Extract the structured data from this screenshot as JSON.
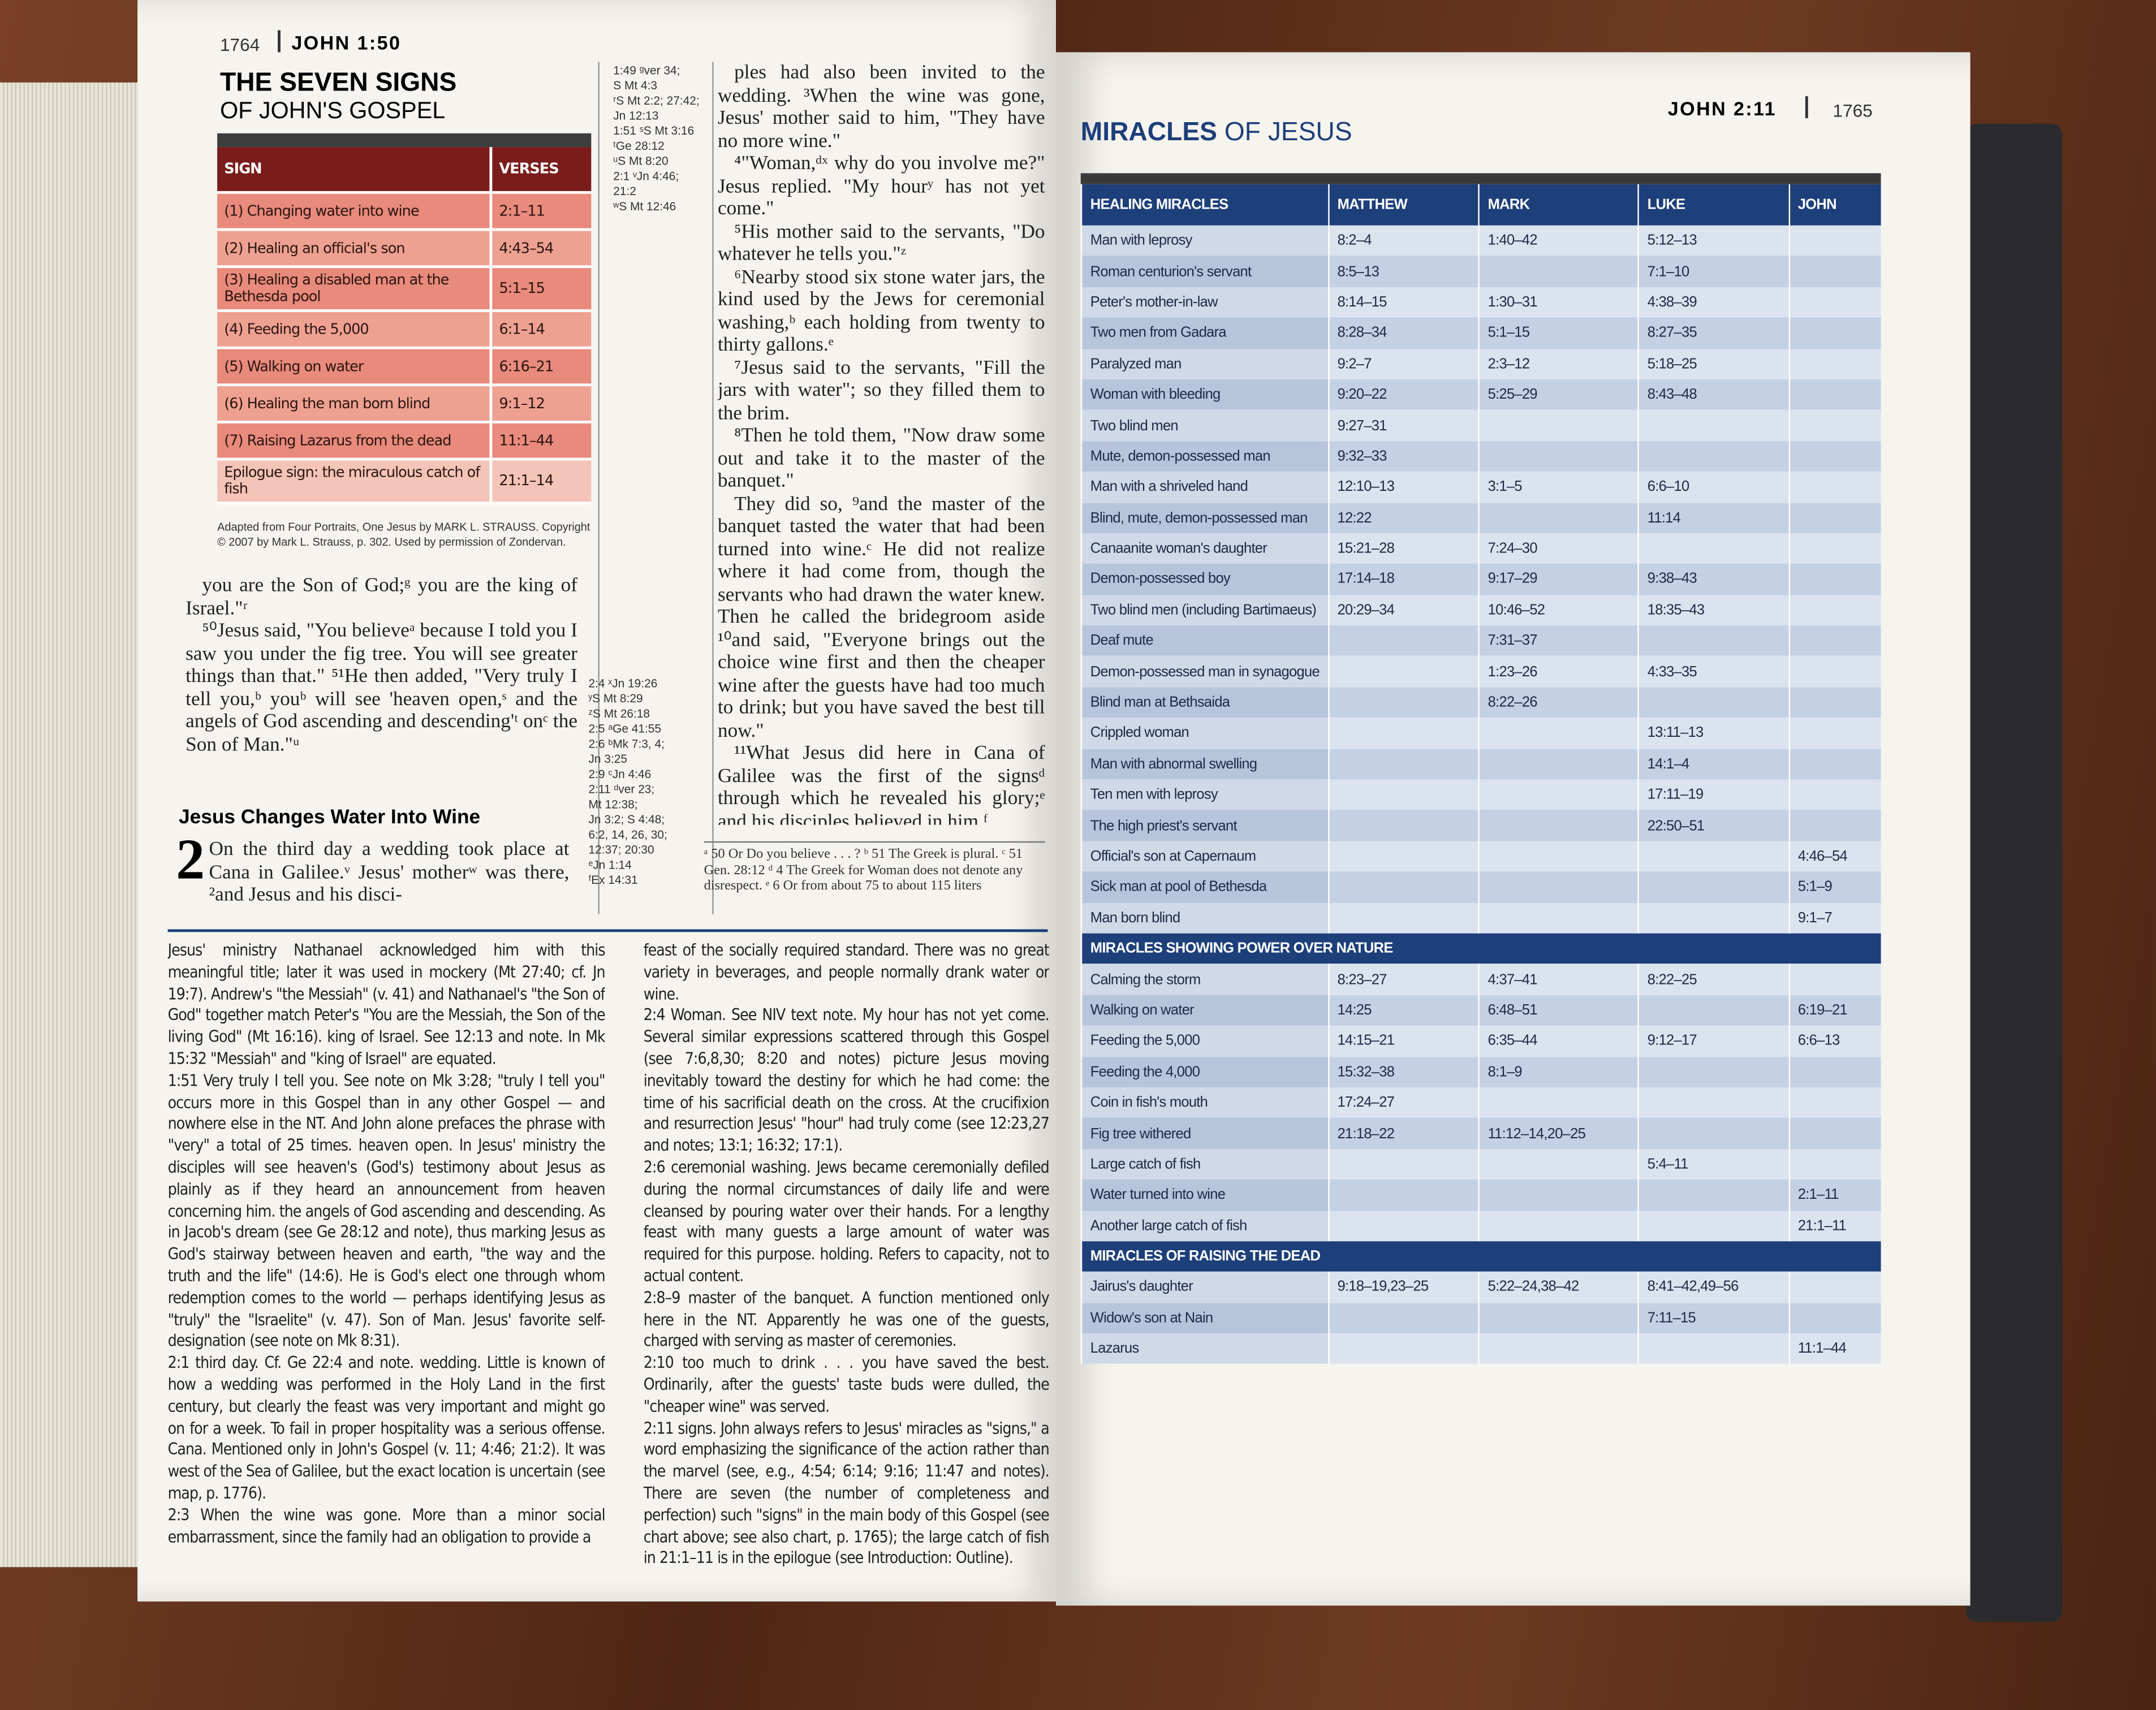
{
  "left_page": {
    "page_number": "1764",
    "running_head": "JOHN 1:50",
    "seven_signs": {
      "title": "THE SEVEN SIGNS",
      "subtitle": "OF JOHN'S GOSPEL",
      "header": [
        "SIGN",
        "VERSES"
      ],
      "rows": [
        [
          "(1) Changing water into wine",
          "2:1–11"
        ],
        [
          "(2) Healing an official's son",
          "4:43–54"
        ],
        [
          "(3) Healing a disabled man at the Bethesda pool",
          "5:1–15"
        ],
        [
          "(4) Feeding the 5,000",
          "6:1–14"
        ],
        [
          "(5) Walking on water",
          "6:16–21"
        ],
        [
          "(6) Healing the man born blind",
          "9:1–12"
        ],
        [
          "(7) Raising Lazarus from the dead",
          "11:1–44"
        ],
        [
          "Epilogue sign: the miraculous catch of fish",
          "21:1–14"
        ]
      ],
      "credit": "Adapted from Four Portraits, One Jesus by MARK L. STRAUSS. Copyright © 2007 by Mark L. Strauss, p. 302. Used by permission of Zondervan."
    },
    "cross_refs_top": [
      "1:49 ᵍver 34;",
      "S Mt 4:3",
      "ʳS Mt 2:2; 27:42;",
      "Jn 12:13",
      "1:51 ˢS Mt 3:16",
      "ᵗGe 28:12",
      "ᵘS Mt 8:20",
      "2:1 ᵛJn 4:46;",
      "21:2",
      "ʷS Mt 12:46"
    ],
    "cross_refs_bottom": [
      "2:4 ˣJn 19:26",
      "ʸS Mt 8:29",
      "ᶻS Mt 26:18",
      "2:5 ᵃGe 41:55",
      "2:6 ᵇMk 7:3, 4;",
      "Jn 3:25",
      "2:9 ᶜJn 4:46",
      "2:11 ᵈver 23;",
      "Mt 12:38;",
      "Jn 3:2; S 4:48;",
      "6:2, 14, 26, 30;",
      "12:37; 20:30",
      "ᵉJn 1:14",
      "ᶠEx 14:31"
    ],
    "text_left": [
      "you are the Son of God;ᵍ you are the king of Israel.\"ʳ",
      "⁵⁰Jesus said, \"You believeᵃ because I told you I saw you under the fig tree. You will see greater things than that.\" ⁵¹He then added, \"Very truly I tell you,ᵇ youᵇ will see 'heaven open,ˢ and the angels of God ascending and descending'ᵗ onᶜ the Son of Man.\"ᵘ"
    ],
    "section_heading": "Jesus Changes Water Into Wine",
    "drop_cap": "2",
    "chapter_text": "On the third day a wedding took place at Cana in Galilee.ᵛ Jesus' motherʷ was there, ²and Jesus and his disci-",
    "text_right": [
      "ples had also been invited to the wedding. ³When the wine was gone, Jesus' mother said to him, \"They have no more wine.\"",
      "⁴\"Woman,ᵈˣ why do you involve me?\" Jesus replied. \"My hourʸ has not yet come.\"",
      "⁵His mother said to the servants, \"Do whatever he tells you.\"ᶻ",
      "⁶Nearby stood six stone water jars, the kind used by the Jews for ceremonial washing,ᵇ each holding from twenty to thirty gallons.ᵉ",
      "⁷Jesus said to the servants, \"Fill the jars with water\"; so they filled them to the brim.",
      "⁸Then he told them, \"Now draw some out and take it to the master of the banquet.\"",
      "They did so, ⁹and the master of the banquet tasted the water that had been turned into wine.ᶜ He did not realize where it had come from, though the servants who had drawn the water knew. Then he called the bridegroom aside ¹⁰and said, \"Everyone brings out the choice wine first and then the cheaper wine after the guests have had too much to drink; but you have saved the best till now.\"",
      "¹¹What Jesus did here in Cana of Galilee was the first of the signsᵈ through which he revealed his glory;ᵉ and his disciples believed in him.ᶠ"
    ],
    "footnotes": "ᵃ 50 Or Do you believe . . . ? ᵇ 51 The Greek is plural. ᶜ 51 Gen. 28:12 ᵈ 4 The Greek for Woman does not denote any disrespect. ᵉ 6 Or from about 75 to about 115 liters",
    "study_notes_left": [
      "Jesus' ministry Nathanael acknowledged him with this meaningful title; later it was used in mockery (Mt 27:40; cf. Jn 19:7). Andrew's \"the Messiah\" (v. 41) and Nathanael's \"the Son of God\" together match Peter's \"You are the Messiah, the Son of the living God\" (Mt 16:16). king of Israel. See 12:13 and note. In Mk 15:32 \"Messiah\" and \"king of Israel\" are equated.",
      "1:51 Very truly I tell you. See note on Mk 3:28; \"truly I tell you\" occurs more in this Gospel than in any other Gospel — and nowhere else in the NT. And John alone prefaces the phrase with \"very\" a total of 25 times. heaven open. In Jesus' ministry the disciples will see heaven's (God's) testimony about Jesus as plainly as if they heard an announcement from heaven concerning him. the angels of God ascending and descending. As in Jacob's dream (see Ge 28:12 and note), thus marking Jesus as God's stairway between heaven and earth, \"the way and the truth and the life\" (14:6). He is God's elect one through whom redemption comes to the world — perhaps identifying Jesus as \"truly\" the \"Israelite\" (v. 47). Son of Man. Jesus' favorite self-designation (see note on Mk 8:31).",
      "2:1 third day. Cf. Ge 22:4 and note. wedding. Little is known of how a wedding was performed in the Holy Land in the first century, but clearly the feast was very important and might go on for a week. To fail in proper hospitality was a serious offense. Cana. Mentioned only in John's Gospel (v. 11; 4:46; 21:2). It was west of the Sea of Galilee, but the exact location is uncertain (see map, p. 1776).",
      "2:3 When the wine was gone. More than a minor social embarrassment, since the family had an obligation to provide a"
    ],
    "study_notes_right": [
      "feast of the socially required standard. There was no great variety in beverages, and people normally drank water or wine.",
      "2:4 Woman. See NIV text note. My hour has not yet come. Several similar expressions scattered through this Gospel (see 7:6,8,30; 8:20 and notes) picture Jesus moving inevitably toward the destiny for which he had come: the time of his sacrificial death on the cross. At the crucifixion and resurrection Jesus' \"hour\" had truly come (see 12:23,27 and notes; 13:1; 16:32; 17:1).",
      "2:6 ceremonial washing. Jews became ceremonially defiled during the normal circumstances of daily life and were cleansed by pouring water over their hands. For a lengthy feast with many guests a large amount of water was required for this purpose. holding. Refers to capacity, not to actual content.",
      "2:8–9 master of the banquet. A function mentioned only here in the NT. Apparently he was one of the guests, charged with serving as master of ceremonies.",
      "2:10 too much to drink . . . you have saved the best. Ordinarily, after the guests' taste buds were dulled, the \"cheaper wine\" was served.",
      "2:11 signs. John always refers to Jesus' miracles as \"signs,\" a word emphasizing the significance of the action rather than the marvel (see, e.g., 4:54; 6:14; 9:16; 11:47 and notes). There are seven (the number of completeness and perfection) such \"signs\" in the main body of this Gospel (see chart above; see also chart, p. 1765); the large catch of fish in 21:1–11 is in the epilogue (see Introduction: Outline)."
    ]
  },
  "right_page": {
    "running_head": "JOHN 2:11",
    "page_number": "1765",
    "miracles": {
      "title": "MIRACLES",
      "title_rest": "OF JESUS",
      "columns": [
        "MATTHEW",
        "MARK",
        "LUKE",
        "JOHN"
      ],
      "groups": [
        {
          "heading": "HEALING MIRACLES",
          "rows": [
            [
              "Man with leprosy",
              "8:2–4",
              "1:40–42",
              "5:12–13",
              null
            ],
            [
              "Roman centurion's servant",
              "8:5–13",
              null,
              "7:1–10",
              null
            ],
            [
              "Peter's mother-in-law",
              "8:14–15",
              "1:30–31",
              "4:38–39",
              null
            ],
            [
              "Two men from Gadara",
              "8:28–34",
              "5:1–15",
              "8:27–35",
              null
            ],
            [
              "Paralyzed man",
              "9:2–7",
              "2:3–12",
              "5:18–25",
              null
            ],
            [
              "Woman with bleeding",
              "9:20–22",
              "5:25–29",
              "8:43–48",
              null
            ],
            [
              "Two blind men",
              "9:27–31",
              null,
              null,
              null
            ],
            [
              "Mute, demon-possessed man",
              "9:32–33",
              null,
              null,
              null
            ],
            [
              "Man with a shriveled hand",
              "12:10–13",
              "3:1–5",
              "6:6–10",
              null
            ],
            [
              "Blind, mute, demon-possessed man",
              "12:22",
              null,
              "11:14",
              null
            ],
            [
              "Canaanite woman's daughter",
              "15:21–28",
              "7:24–30",
              null,
              null
            ],
            [
              "Demon-possessed boy",
              "17:14–18",
              "9:17–29",
              "9:38–43",
              null
            ],
            [
              "Two blind men (including Bartimaeus)",
              "20:29–34",
              "10:46–52",
              "18:35–43",
              null
            ],
            [
              "Deaf mute",
              null,
              "7:31–37",
              null,
              null
            ],
            [
              "Demon-possessed man in synagogue",
              null,
              "1:23–26",
              "4:33–35",
              null
            ],
            [
              "Blind man at Bethsaida",
              null,
              "8:22–26",
              null,
              null
            ],
            [
              "Crippled woman",
              null,
              null,
              "13:11–13",
              null
            ],
            [
              "Man with abnormal swelling",
              null,
              null,
              "14:1–4",
              null
            ],
            [
              "Ten men with leprosy",
              null,
              null,
              "17:11–19",
              null
            ],
            [
              "The high priest's servant",
              null,
              null,
              "22:50–51",
              null
            ],
            [
              "Official's son at Capernaum",
              null,
              null,
              null,
              "4:46–54"
            ],
            [
              "Sick man at pool of Bethesda",
              null,
              null,
              null,
              "5:1–9"
            ],
            [
              "Man born blind",
              null,
              null,
              null,
              "9:1–7"
            ]
          ]
        },
        {
          "heading": "MIRACLES SHOWING POWER OVER NATURE",
          "rows": [
            [
              "Calming the storm",
              "8:23–27",
              "4:37–41",
              "8:22–25",
              null
            ],
            [
              "Walking on water",
              "14:25",
              "6:48–51",
              null,
              "6:19–21"
            ],
            [
              "Feeding the 5,000",
              "14:15–21",
              "6:35–44",
              "9:12–17",
              "6:6–13"
            ],
            [
              "Feeding the 4,000",
              "15:32–38",
              "8:1–9",
              null,
              null
            ],
            [
              "Coin in fish's mouth",
              "17:24–27",
              null,
              null,
              null
            ],
            [
              "Fig tree withered",
              "21:18–22",
              "11:12–14,20–25",
              null,
              null
            ],
            [
              "Large catch of fish",
              null,
              null,
              "5:4–11",
              null
            ],
            [
              "Water turned into wine",
              null,
              null,
              null,
              "2:1–11"
            ],
            [
              "Another large catch of fish",
              null,
              null,
              null,
              "21:1–11"
            ]
          ]
        },
        {
          "heading": "MIRACLES OF RAISING THE DEAD",
          "rows": [
            [
              "Jairus's daughter",
              "9:18–19,23–25",
              "5:22–24,38–42",
              "8:41–42,49–56",
              null
            ],
            [
              "Widow's son at Nain",
              null,
              null,
              "7:11–15",
              null
            ],
            [
              "Lazarus",
              null,
              null,
              null,
              "11:1–44"
            ]
          ]
        }
      ]
    }
  }
}
